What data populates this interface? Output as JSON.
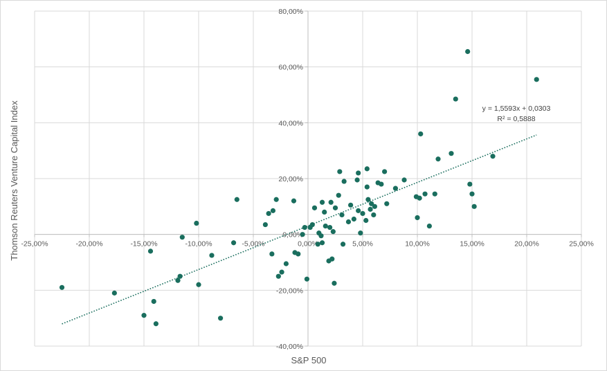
{
  "chart_data": {
    "type": "scatter",
    "title": "",
    "xlabel": "S&P 500",
    "ylabel": "Thomson Reuters Venture Capital Index",
    "xlim": [
      -0.25,
      0.25
    ],
    "ylim": [
      -0.4,
      0.8
    ],
    "x_ticks": [
      -0.25,
      -0.2,
      -0.15,
      -0.1,
      -0.05,
      0.0,
      0.05,
      0.1,
      0.15,
      0.2,
      0.25
    ],
    "x_tick_labels": [
      "-25,00%",
      "-20,00%",
      "-15,00%",
      "-10,00%",
      "-5,00%",
      "0,00%",
      "5,00%",
      "10,00%",
      "15,00%",
      "20,00%",
      "25,00%"
    ],
    "y_ticks": [
      -0.4,
      -0.2,
      0.0,
      0.2,
      0.4,
      0.6,
      0.8
    ],
    "y_tick_labels": [
      "-40,00%",
      "-20,00%",
      "0,00%",
      "20,00%",
      "40,00%",
      "60,00%",
      "80,00%"
    ],
    "grid": true,
    "marker_color": "#1a6e5e",
    "trendline": {
      "slope": 1.5593,
      "intercept": 0.0303,
      "x_range": [
        -0.225,
        0.209
      ],
      "equation_label": "y = 1,5593x + 0,0303",
      "r2_label": "R² = 0,5888",
      "color": "#1a6e5e"
    },
    "points": [
      {
        "x": -0.225,
        "y": -0.19
      },
      {
        "x": -0.177,
        "y": -0.21
      },
      {
        "x": -0.15,
        "y": -0.29
      },
      {
        "x": -0.144,
        "y": -0.06
      },
      {
        "x": -0.141,
        "y": -0.24
      },
      {
        "x": -0.139,
        "y": -0.32
      },
      {
        "x": -0.119,
        "y": -0.165
      },
      {
        "x": -0.117,
        "y": -0.15
      },
      {
        "x": -0.115,
        "y": -0.01
      },
      {
        "x": -0.102,
        "y": 0.04
      },
      {
        "x": -0.1,
        "y": -0.18
      },
      {
        "x": -0.088,
        "y": -0.075
      },
      {
        "x": -0.08,
        "y": -0.3
      },
      {
        "x": -0.068,
        "y": -0.03
      },
      {
        "x": -0.065,
        "y": 0.125
      },
      {
        "x": -0.039,
        "y": 0.035
      },
      {
        "x": -0.036,
        "y": 0.075
      },
      {
        "x": -0.033,
        "y": -0.07
      },
      {
        "x": -0.032,
        "y": 0.085
      },
      {
        "x": -0.029,
        "y": 0.125
      },
      {
        "x": -0.027,
        "y": -0.15
      },
      {
        "x": -0.024,
        "y": -0.135
      },
      {
        "x": -0.02,
        "y": -0.105
      },
      {
        "x": -0.013,
        "y": 0.12
      },
      {
        "x": -0.012,
        "y": -0.065
      },
      {
        "x": -0.009,
        "y": -0.07
      },
      {
        "x": -0.005,
        "y": 0.0
      },
      {
        "x": -0.003,
        "y": 0.025
      },
      {
        "x": -0.001,
        "y": -0.16
      },
      {
        "x": 0.002,
        "y": 0.025
      },
      {
        "x": 0.004,
        "y": 0.035
      },
      {
        "x": 0.006,
        "y": 0.095
      },
      {
        "x": 0.009,
        "y": -0.035
      },
      {
        "x": 0.01,
        "y": 0.005
      },
      {
        "x": 0.012,
        "y": -0.005
      },
      {
        "x": 0.013,
        "y": -0.03
      },
      {
        "x": 0.013,
        "y": 0.115
      },
      {
        "x": 0.015,
        "y": 0.08
      },
      {
        "x": 0.016,
        "y": 0.03
      },
      {
        "x": 0.019,
        "y": -0.095
      },
      {
        "x": 0.02,
        "y": 0.025
      },
      {
        "x": 0.021,
        "y": 0.115
      },
      {
        "x": 0.022,
        "y": -0.088
      },
      {
        "x": 0.023,
        "y": 0.01
      },
      {
        "x": 0.024,
        "y": -0.175
      },
      {
        "x": 0.025,
        "y": 0.095
      },
      {
        "x": 0.028,
        "y": 0.14
      },
      {
        "x": 0.029,
        "y": 0.225
      },
      {
        "x": 0.031,
        "y": 0.07
      },
      {
        "x": 0.032,
        "y": -0.035
      },
      {
        "x": 0.033,
        "y": 0.19
      },
      {
        "x": 0.037,
        "y": 0.045
      },
      {
        "x": 0.039,
        "y": 0.105
      },
      {
        "x": 0.042,
        "y": 0.055
      },
      {
        "x": 0.045,
        "y": 0.195
      },
      {
        "x": 0.046,
        "y": 0.22
      },
      {
        "x": 0.046,
        "y": 0.085
      },
      {
        "x": 0.048,
        "y": 0.005
      },
      {
        "x": 0.05,
        "y": 0.075
      },
      {
        "x": 0.053,
        "y": 0.05
      },
      {
        "x": 0.054,
        "y": 0.235
      },
      {
        "x": 0.054,
        "y": 0.17
      },
      {
        "x": 0.055,
        "y": 0.125
      },
      {
        "x": 0.057,
        "y": 0.09
      },
      {
        "x": 0.058,
        "y": 0.11
      },
      {
        "x": 0.06,
        "y": 0.07
      },
      {
        "x": 0.061,
        "y": 0.1
      },
      {
        "x": 0.064,
        "y": 0.185
      },
      {
        "x": 0.067,
        "y": 0.18
      },
      {
        "x": 0.07,
        "y": 0.225
      },
      {
        "x": 0.072,
        "y": 0.11
      },
      {
        "x": 0.08,
        "y": 0.165
      },
      {
        "x": 0.088,
        "y": 0.195
      },
      {
        "x": 0.099,
        "y": 0.135
      },
      {
        "x": 0.1,
        "y": 0.06
      },
      {
        "x": 0.102,
        "y": 0.13
      },
      {
        "x": 0.103,
        "y": 0.36
      },
      {
        "x": 0.107,
        "y": 0.145
      },
      {
        "x": 0.111,
        "y": 0.03
      },
      {
        "x": 0.116,
        "y": 0.145
      },
      {
        "x": 0.119,
        "y": 0.27
      },
      {
        "x": 0.131,
        "y": 0.29
      },
      {
        "x": 0.135,
        "y": 0.485
      },
      {
        "x": 0.146,
        "y": 0.655
      },
      {
        "x": 0.148,
        "y": 0.18
      },
      {
        "x": 0.15,
        "y": 0.145
      },
      {
        "x": 0.152,
        "y": 0.1
      },
      {
        "x": 0.169,
        "y": 0.28
      },
      {
        "x": 0.209,
        "y": 0.555
      }
    ]
  }
}
